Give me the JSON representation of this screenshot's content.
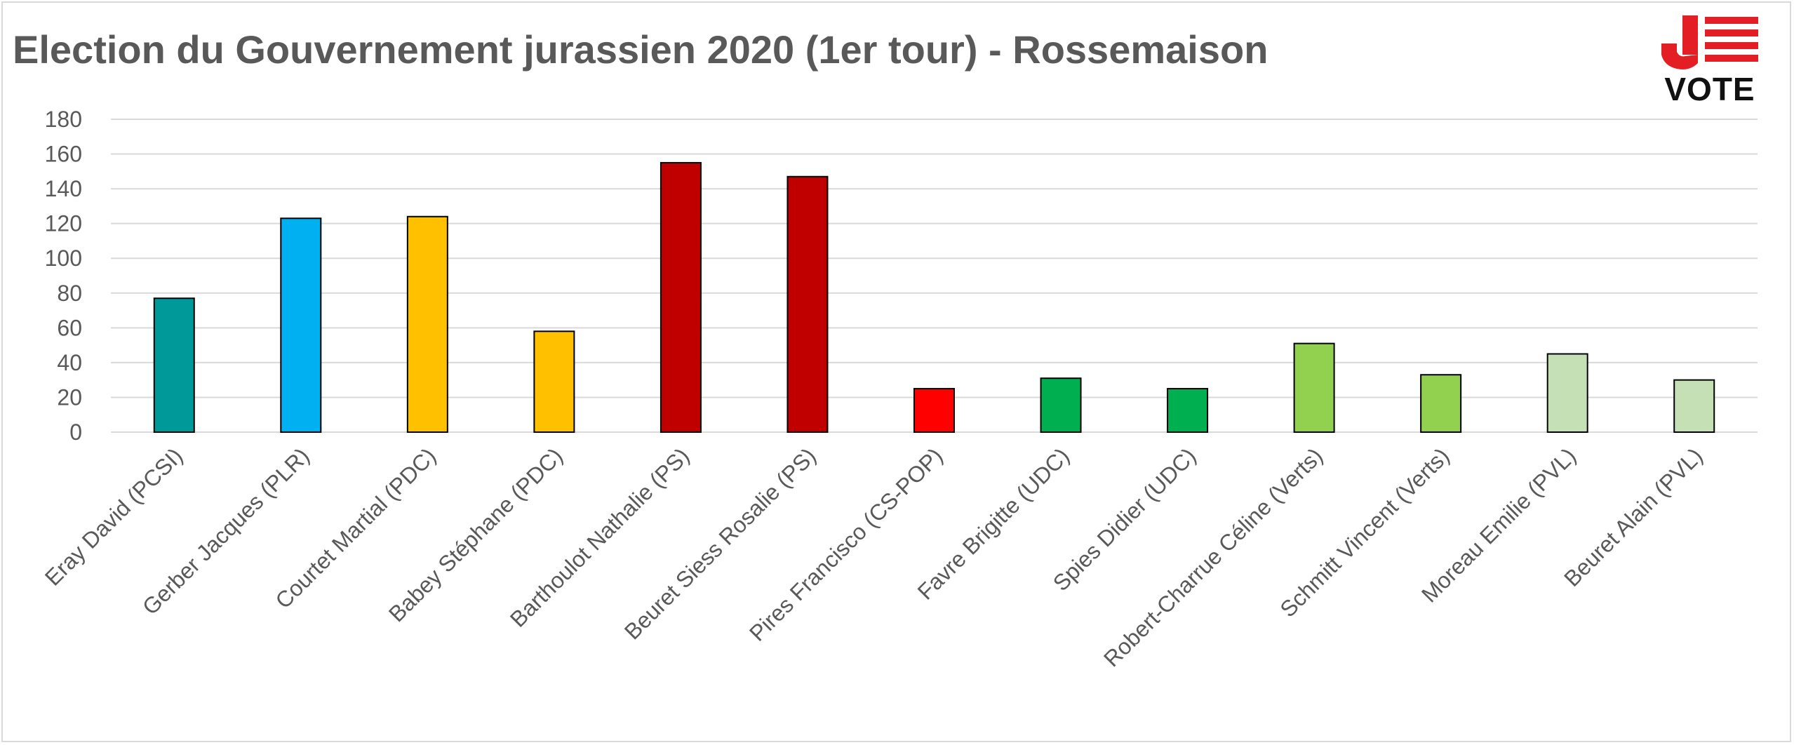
{
  "chart_data": {
    "type": "bar",
    "title": "Election du Gouvernement jurassien 2020 (1er tour) - Rossemaison",
    "xlabel": "",
    "ylabel": "",
    "ylim": [
      0,
      180
    ],
    "yticks": [
      0,
      20,
      40,
      60,
      80,
      100,
      120,
      140,
      160,
      180
    ],
    "grid": true,
    "legend": "none",
    "categories": [
      "Eray David (PCSI)",
      "Gerber Jacques (PLR)",
      "Courtet Martial (PDC)",
      "Babey Stéphane (PDC)",
      "Barthoulot Nathalie (PS)",
      "Beuret Siess Rosalie (PS)",
      "Pires Francisco (CS-POP)",
      "Favre Brigitte (UDC)",
      "Spies Didier (UDC)",
      "Robert-Charrue Céline (Verts)",
      "Schmitt Vincent (Verts)",
      "Moreau Emilie (PVL)",
      "Beuret Alain (PVL)"
    ],
    "values": [
      77,
      123,
      124,
      58,
      155,
      147,
      25,
      31,
      25,
      51,
      33,
      45,
      30
    ],
    "colors": [
      "#009999",
      "#00b0f0",
      "#ffc000",
      "#ffc000",
      "#c00000",
      "#c00000",
      "#ff0000",
      "#00b050",
      "#00b050",
      "#92d050",
      "#92d050",
      "#c5e0b4",
      "#c5e0b4"
    ]
  },
  "logo": {
    "top_text": "J",
    "bottom_text": "VOTE",
    "accent": "#e31e24"
  }
}
